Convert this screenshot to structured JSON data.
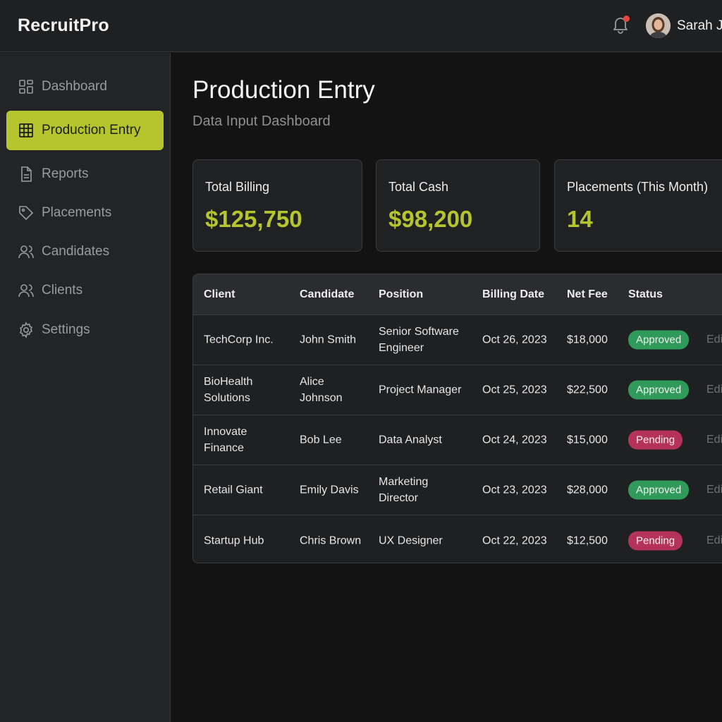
{
  "app": {
    "name": "RecruitPro"
  },
  "header": {
    "user_name": "Sarah J."
  },
  "sidebar": {
    "items": [
      {
        "label": "Dashboard",
        "icon": "grid-icon"
      },
      {
        "label": "Production Entry",
        "icon": "table-icon",
        "active": true
      },
      {
        "label": "Reports",
        "icon": "document-icon"
      },
      {
        "label": "Placements",
        "icon": "tag-icon"
      },
      {
        "label": "Candidates",
        "icon": "users-icon"
      },
      {
        "label": "Clients",
        "icon": "users-icon"
      },
      {
        "label": "Settings",
        "icon": "gear-icon"
      }
    ]
  },
  "page": {
    "title": "Production Entry",
    "subtitle": "Data Input Dashboard"
  },
  "cards": [
    {
      "label": "Total Billing",
      "value": "$125,750"
    },
    {
      "label": "Total Cash",
      "value": "$98,200"
    },
    {
      "label": "Placements (This Month)",
      "value": "14"
    }
  ],
  "table": {
    "headers": [
      "Client",
      "Candidate",
      "Position",
      "Billing Date",
      "Net Fee",
      "Status"
    ],
    "rows": [
      {
        "client": "TechCorp Inc.",
        "candidate": "John Smith",
        "position": "Senior Software\nEngineer",
        "date": "Oct 26, 2023",
        "fee": "$18,000",
        "status": "Approved",
        "action": "Edi"
      },
      {
        "client": "BioHealth\nSolutions",
        "candidate": "Alice\nJohnson",
        "position": "Project Manager",
        "date": "Oct 25, 2023",
        "fee": "$22,500",
        "status": "Approved",
        "action": "Edi"
      },
      {
        "client": "Innovate\nFinance",
        "candidate": "Bob Lee",
        "position": "Data Analyst",
        "date": "Oct 24, 2023",
        "fee": "$15,000",
        "status": "Pending",
        "action": "Edi"
      },
      {
        "client": "Retail Giant",
        "candidate": "Emily Davis",
        "position": "Marketing\nDirector",
        "date": "Oct 23, 2023",
        "fee": "$28,000",
        "status": "Approved",
        "action": "Edi"
      },
      {
        "client": "Startup Hub",
        "candidate": "Chris Brown",
        "position": "UX Designer",
        "date": "Oct 22, 2023",
        "fee": "$12,500",
        "status": "Pending",
        "action": "Edi"
      }
    ]
  },
  "colors": {
    "accent": "#b6c52e",
    "approved": "#2f9a5a",
    "pending": "#b5325a",
    "background": "#141414",
    "notification": "#e5483f"
  }
}
